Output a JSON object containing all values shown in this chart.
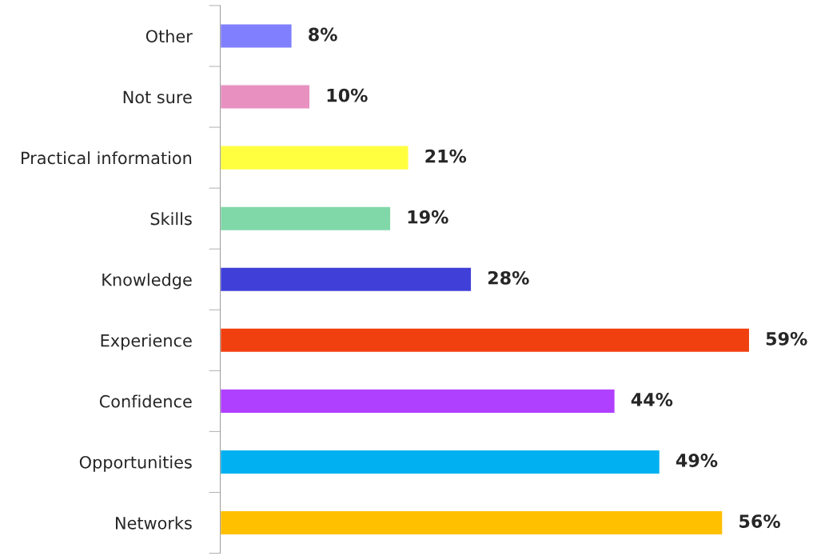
{
  "chart_data": {
    "type": "bar",
    "orientation": "horizontal",
    "categories": [
      "Other",
      "Not sure",
      "Practical information",
      "Skills",
      "Knowledge",
      "Experience",
      "Confidence",
      "Opportunities",
      "Networks"
    ],
    "values": [
      8,
      10,
      21,
      19,
      28,
      59,
      44,
      49,
      56
    ],
    "value_labels": [
      "8%",
      "10%",
      "21%",
      "19%",
      "28%",
      "59%",
      "44%",
      "49%",
      "56%"
    ],
    "colors": [
      "#8080ff",
      "#e890c0",
      "#ffff40",
      "#80d8a8",
      "#4040d8",
      "#f04010",
      "#b040ff",
      "#00b0f0",
      "#ffc000"
    ],
    "tick_labels": "y",
    "grid": false,
    "legend": false
  }
}
